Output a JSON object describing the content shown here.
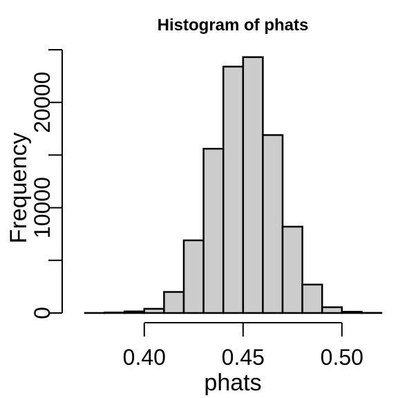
{
  "chart_data": {
    "type": "bar",
    "title": "Histogram of phats",
    "xlabel": "phats",
    "ylabel": "Frequency",
    "bins": [
      {
        "start": 0.37,
        "end": 0.38,
        "value": 5
      },
      {
        "start": 0.38,
        "end": 0.39,
        "value": 50
      },
      {
        "start": 0.39,
        "end": 0.4,
        "value": 150
      },
      {
        "start": 0.4,
        "end": 0.41,
        "value": 400
      },
      {
        "start": 0.41,
        "end": 0.42,
        "value": 2000
      },
      {
        "start": 0.42,
        "end": 0.43,
        "value": 6900
      },
      {
        "start": 0.43,
        "end": 0.44,
        "value": 15600
      },
      {
        "start": 0.44,
        "end": 0.45,
        "value": 23400
      },
      {
        "start": 0.45,
        "end": 0.46,
        "value": 24300
      },
      {
        "start": 0.46,
        "end": 0.47,
        "value": 16900
      },
      {
        "start": 0.47,
        "end": 0.48,
        "value": 8200
      },
      {
        "start": 0.48,
        "end": 0.49,
        "value": 2700
      },
      {
        "start": 0.49,
        "end": 0.5,
        "value": 550
      },
      {
        "start": 0.5,
        "end": 0.51,
        "value": 120
      },
      {
        "start": 0.51,
        "end": 0.52,
        "value": 15
      }
    ],
    "xlim": [
      0.37,
      0.52
    ],
    "ylim": [
      0,
      25000
    ],
    "xticks": [
      {
        "value": 0.4,
        "label": "0.40"
      },
      {
        "value": 0.45,
        "label": "0.45"
      },
      {
        "value": 0.5,
        "label": "0.50"
      }
    ],
    "yticks": [
      {
        "value": 0,
        "label": "0"
      },
      {
        "value": 5000,
        "label": ""
      },
      {
        "value": 10000,
        "label": "10000"
      },
      {
        "value": 15000,
        "label": ""
      },
      {
        "value": 20000,
        "label": "20000"
      },
      {
        "value": 25000,
        "label": ""
      }
    ],
    "bar_color": "#cccccc",
    "edge_color": "#000000",
    "grid": false
  }
}
